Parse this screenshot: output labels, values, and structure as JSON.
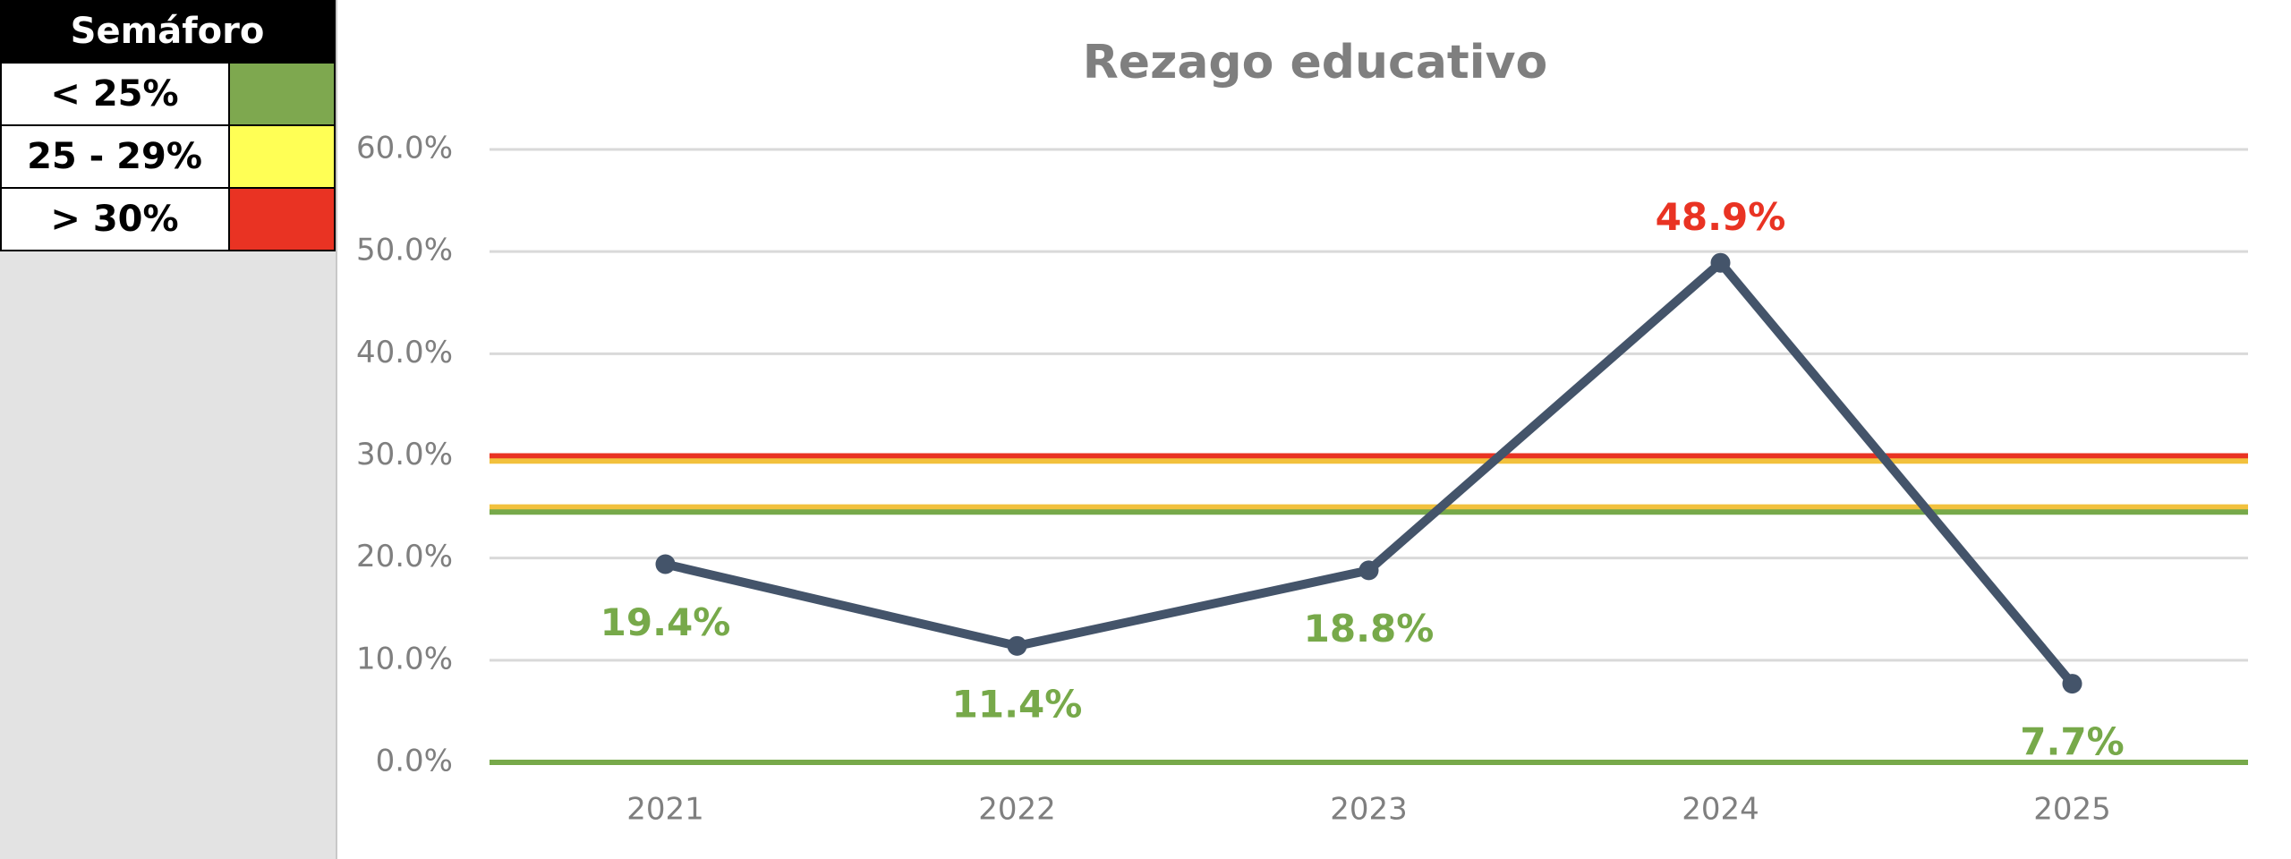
{
  "semaforo": {
    "title": "Semáforo",
    "rows": [
      {
        "label": "< 25%",
        "color": "#7ea84f"
      },
      {
        "label": "25 - 29%",
        "color": "#ffff55"
      },
      {
        "label": "> 30%",
        "color": "#e93323"
      }
    ]
  },
  "chart_data": {
    "type": "line",
    "title": "Rezago educativo",
    "categories": [
      "2021",
      "2022",
      "2023",
      "2024",
      "2025"
    ],
    "series": [
      {
        "name": "Rezago educativo",
        "color": "#44546a",
        "values": [
          19.4,
          11.4,
          18.8,
          48.9,
          7.7
        ],
        "value_labels": [
          "19.4%",
          "11.4%",
          "18.8%",
          "48.9%",
          "7.7%"
        ],
        "label_colors": [
          "#77a94a",
          "#77a94a",
          "#77a94a",
          "#e93323",
          "#77a94a"
        ]
      }
    ],
    "reference_lines": [
      {
        "value": 30,
        "color": "#e93323"
      },
      {
        "value": 29.5,
        "color": "#f2c13d"
      },
      {
        "value": 25,
        "color": "#f2c13d"
      },
      {
        "value": 24.5,
        "color": "#77a94a"
      },
      {
        "value": 0,
        "color": "#77a94a"
      }
    ],
    "ylim": [
      0,
      60
    ],
    "yticks": [
      {
        "value": 0,
        "label": "0.0%"
      },
      {
        "value": 10,
        "label": "10.0%"
      },
      {
        "value": 20,
        "label": "20.0%"
      },
      {
        "value": 30,
        "label": "30.0%"
      },
      {
        "value": 40,
        "label": "40.0%"
      },
      {
        "value": 50,
        "label": "50.0%"
      },
      {
        "value": 60,
        "label": "60.0%"
      }
    ],
    "grid": true
  }
}
